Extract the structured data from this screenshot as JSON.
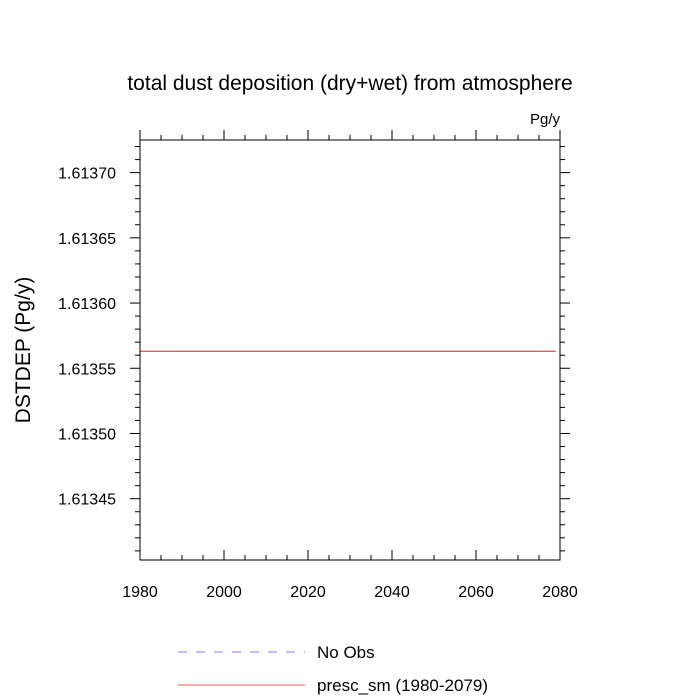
{
  "chart_data": {
    "type": "line",
    "title": "total dust deposition (dry+wet) from atmosphere",
    "units_label": "Pg/y",
    "ylabel": "DSTDEP  (Pg/y)",
    "xlabel": "",
    "xlim": [
      1980,
      2080
    ],
    "ylim": [
      1.613403,
      1.613725
    ],
    "x_ticks": [
      1980,
      2000,
      2020,
      2040,
      2060,
      2080
    ],
    "x_tick_labels": [
      "1980",
      "2000",
      "2020",
      "2040",
      "2060",
      "2080"
    ],
    "y_ticks": [
      1.61345,
      1.6135,
      1.61355,
      1.6136,
      1.61365,
      1.6137
    ],
    "y_tick_labels": [
      "1.61345",
      "1.61350",
      "1.61355",
      "1.61360",
      "1.61365",
      "1.61370"
    ],
    "grid": false,
    "legend_placement": "bottom",
    "series": [
      {
        "name": "No Obs",
        "style": "dashed",
        "color": "#8080ff",
        "x": [],
        "y": []
      },
      {
        "name": "presc_sm (1980-2079)",
        "style": "solid",
        "color": "#e85a5a",
        "x": [
          1980,
          2079
        ],
        "y": [
          1.613563,
          1.613563
        ]
      }
    ]
  }
}
